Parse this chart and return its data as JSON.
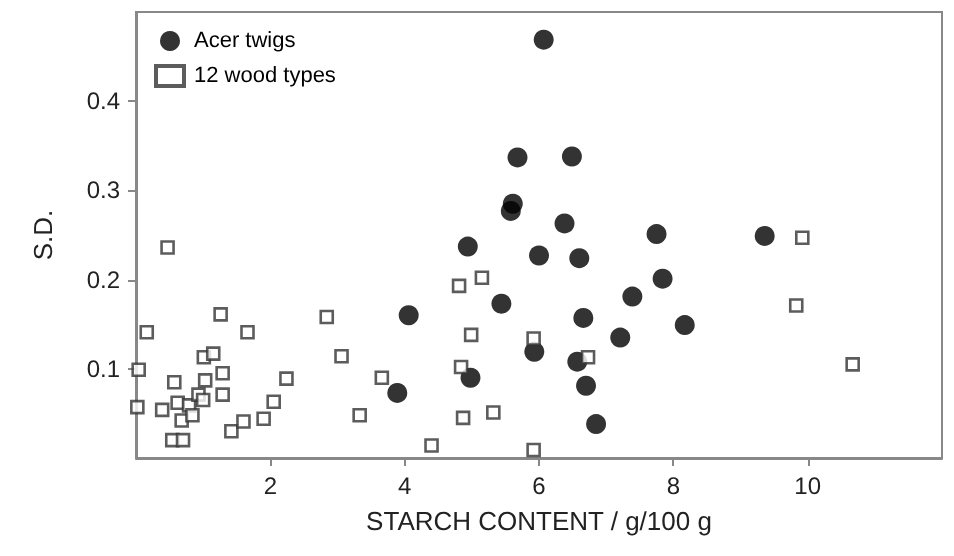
{
  "chart_data": {
    "type": "scatter",
    "xlabel": "STARCH CONTENT / g/100 g",
    "ylabel": "S.D.",
    "xlim": [
      0,
      12
    ],
    "xticks": [
      2,
      4,
      6,
      8,
      10
    ],
    "ylim": [
      0,
      0.5
    ],
    "yticks": [
      0.1,
      0.2,
      0.3,
      0.4
    ],
    "grid": false,
    "legend": "top left",
    "series": [
      {
        "name": "Acer twigs",
        "color": "#000000",
        "marker": "circle",
        "x": [
          3.89,
          4.06,
          4.94,
          4.98,
          5.44,
          5.58,
          5.61,
          5.68,
          5.93,
          6.0,
          6.07,
          6.38,
          6.49,
          6.57,
          6.6,
          6.66,
          6.7,
          6.85,
          7.21,
          7.39,
          7.75,
          7.84,
          8.17,
          9.36
        ],
        "values": [
          0.073,
          0.16,
          0.237,
          0.09,
          0.173,
          0.277,
          0.285,
          0.337,
          0.119,
          0.227,
          0.469,
          0.263,
          0.338,
          0.108,
          0.224,
          0.157,
          0.081,
          0.038,
          0.135,
          0.181,
          0.251,
          0.201,
          0.149,
          0.249
        ]
      },
      {
        "name": "12 wood types",
        "color": "#333333",
        "marker": "square",
        "x": [
          0.02,
          0.04,
          0.16,
          0.39,
          0.47,
          0.54,
          0.57,
          0.62,
          0.68,
          0.7,
          0.79,
          0.84,
          0.93,
          1.0,
          1.01,
          1.03,
          1.15,
          1.26,
          1.29,
          1.29,
          1.42,
          1.6,
          1.66,
          1.9,
          2.05,
          2.24,
          2.84,
          3.06,
          3.33,
          3.66,
          4.4,
          4.81,
          4.84,
          4.87,
          4.99,
          5.15,
          5.32,
          5.92,
          5.92,
          6.73,
          9.83,
          9.92,
          10.67
        ],
        "values": [
          0.057,
          0.099,
          0.141,
          0.054,
          0.236,
          0.02,
          0.085,
          0.062,
          0.042,
          0.02,
          0.059,
          0.048,
          0.071,
          0.065,
          0.113,
          0.087,
          0.117,
          0.161,
          0.095,
          0.071,
          0.03,
          0.041,
          0.141,
          0.044,
          0.063,
          0.089,
          0.158,
          0.114,
          0.048,
          0.09,
          0.014,
          0.193,
          0.102,
          0.045,
          0.138,
          0.202,
          0.051,
          0.134,
          0.009,
          0.113,
          0.171,
          0.247,
          0.105
        ]
      }
    ]
  }
}
